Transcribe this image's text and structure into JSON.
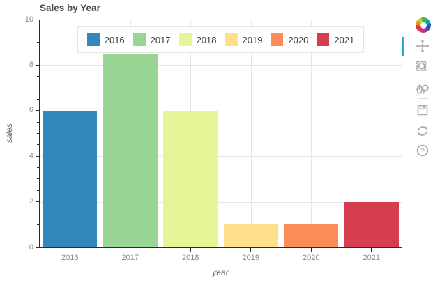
{
  "chart_data": {
    "type": "bar",
    "title": "Sales by Year",
    "xlabel": "year",
    "ylabel": "sales",
    "categories": [
      "2016",
      "2017",
      "2018",
      "2019",
      "2020",
      "2021"
    ],
    "values": [
      6,
      8.5,
      6,
      1,
      1,
      2
    ],
    "colors": [
      "#3288bd",
      "#99d594",
      "#e6f598",
      "#fee08b",
      "#fc8d59",
      "#d53e4f"
    ],
    "ylim": [
      0,
      10
    ],
    "y_major_ticks": [
      0,
      2,
      4,
      6,
      8,
      10
    ],
    "y_tick_labels": [
      "0",
      "2",
      "4",
      "6",
      "8",
      "10"
    ],
    "y_minor_step": 0.5,
    "grid": true,
    "legend_position": "top-center",
    "legend_labels": [
      "2016",
      "2017",
      "2018",
      "2019",
      "2020",
      "2021"
    ],
    "bar_width_fraction": 0.9
  },
  "toolbar": {
    "logo_icon": "bokeh-logo",
    "tool_icons": [
      "pan-icon",
      "box-zoom-icon",
      "wheel-zoom-icon",
      "save-icon",
      "reset-icon",
      "help-icon"
    ],
    "active_tool": "pan",
    "active_indicator_color": "#26aae1"
  },
  "colors": {
    "grid": "#e5e5e5",
    "axis": "#2b2b2b",
    "tick_label": "#898989",
    "title_text": "#4a4a4a"
  }
}
